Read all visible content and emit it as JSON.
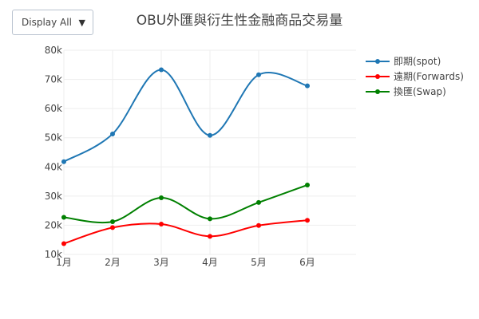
{
  "controls": {
    "display_select": "Display All",
    "caret": "▼"
  },
  "colors": {
    "spot": "#1f77b4",
    "forwards": "#ff0000",
    "swap": "#008000",
    "grid": "#eeeeee"
  },
  "chart_data": {
    "type": "line",
    "title": "OBU外匯與衍生性金融商品交易量",
    "xlabel": "",
    "ylabel": "",
    "categories": [
      "1月",
      "2月",
      "3月",
      "4月",
      "5月",
      "6月"
    ],
    "ylim": [
      10000,
      80000
    ],
    "yticks": [
      10000,
      20000,
      30000,
      40000,
      50000,
      60000,
      70000,
      80000
    ],
    "ytick_labels": [
      "10k",
      "20k",
      "30k",
      "40k",
      "50k",
      "60k",
      "70k",
      "80k"
    ],
    "grid": true,
    "legend_position": "top-right",
    "series": [
      {
        "name": "即期(spot)",
        "color": "#1f77b4",
        "values": [
          41800,
          51300,
          73300,
          50800,
          71600,
          67800
        ]
      },
      {
        "name": "遠期(Forwards)",
        "color": "#ff0000",
        "values": [
          13700,
          19200,
          20400,
          16200,
          19900,
          21700
        ]
      },
      {
        "name": "換匯(Swap)",
        "color": "#008000",
        "values": [
          22700,
          21200,
          29400,
          22200,
          27800,
          33800
        ]
      }
    ]
  }
}
